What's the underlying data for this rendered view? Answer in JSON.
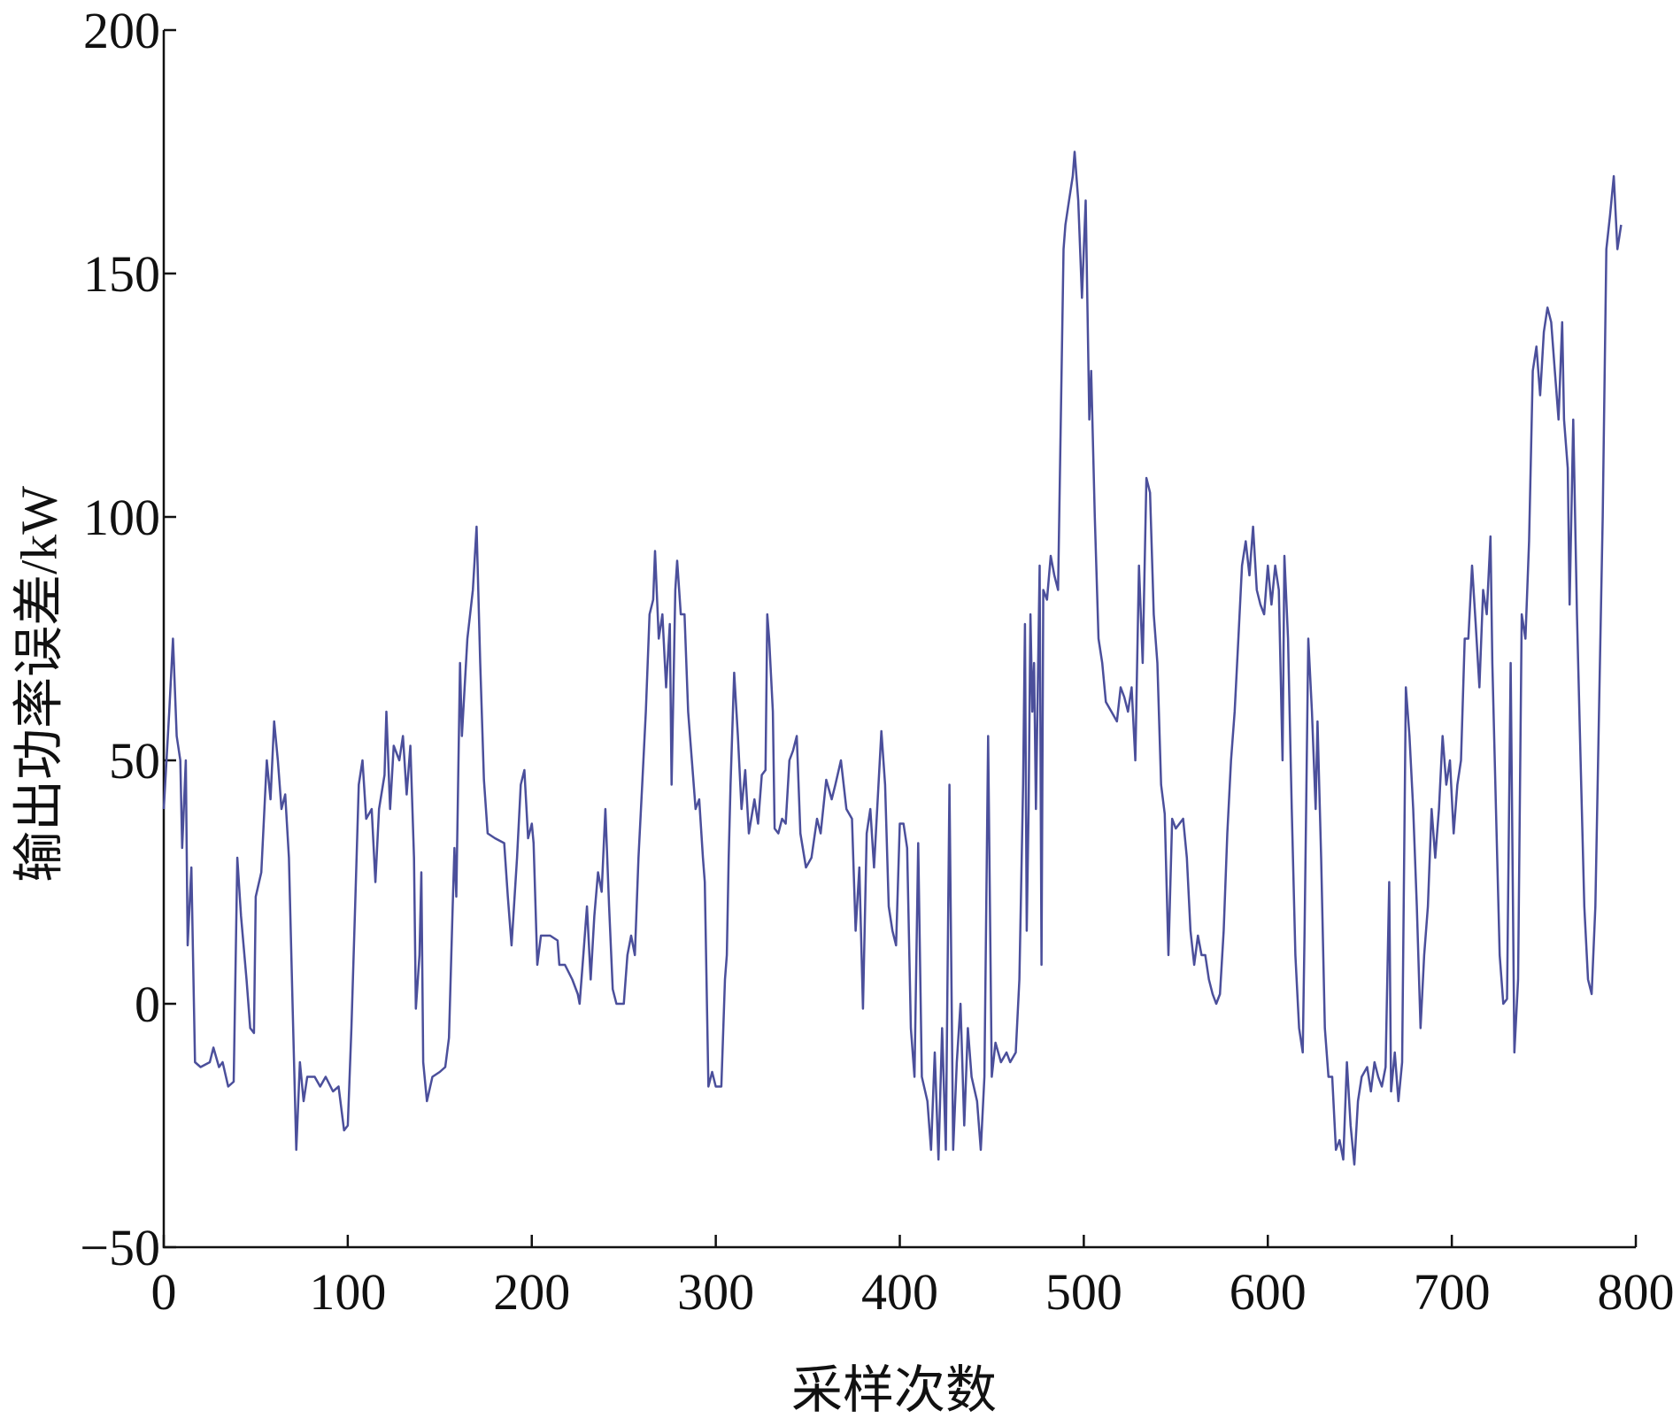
{
  "chart_data": {
    "type": "line",
    "x_label": "采样次数",
    "y_label": "输出功率误差/kW",
    "xlim": [
      0,
      800
    ],
    "ylim": [
      -50,
      200
    ],
    "xticks": [
      0,
      100,
      200,
      300,
      400,
      500,
      600,
      700,
      800
    ],
    "yticks": [
      {
        "value": -50,
        "label": "−50"
      },
      0,
      50,
      100,
      150,
      200
    ],
    "grid": false,
    "series": [
      {
        "color": "#4b4f9b",
        "x": [
          0,
          3,
          5,
          7,
          9,
          10,
          12,
          13,
          15,
          17,
          20,
          25,
          27,
          30,
          32,
          35,
          38,
          40,
          42,
          45,
          47,
          49,
          50,
          53,
          56,
          58,
          60,
          62,
          64,
          66,
          68,
          70,
          72,
          74,
          76,
          78,
          82,
          85,
          88,
          92,
          95,
          98,
          100,
          102,
          104,
          106,
          108,
          110,
          113,
          115,
          117,
          120,
          121,
          123,
          125,
          128,
          130,
          132,
          134,
          136,
          137,
          139,
          140,
          141,
          143,
          146,
          150,
          153,
          155,
          157,
          158,
          159,
          161,
          162,
          165,
          168,
          170,
          172,
          174,
          176,
          180,
          185,
          187,
          189,
          192,
          194,
          196,
          198,
          200,
          201,
          203,
          205,
          210,
          214,
          215,
          218,
          222,
          225,
          226,
          228,
          230,
          232,
          234,
          236,
          238,
          240,
          242,
          244,
          246,
          250,
          252,
          254,
          256,
          258,
          260,
          262,
          264,
          266,
          267,
          269,
          271,
          273,
          275,
          276,
          278,
          279,
          281,
          283,
          285,
          287,
          289,
          291,
          293,
          294,
          296,
          298,
          300,
          303,
          305,
          306,
          307,
          308,
          310,
          312,
          314,
          316,
          318,
          321,
          323,
          325,
          327,
          328,
          329,
          331,
          332,
          334,
          336,
          338,
          340,
          342,
          344,
          346,
          349,
          352,
          355,
          357,
          360,
          363,
          365,
          368,
          371,
          374,
          376,
          378,
          380,
          382,
          384,
          386,
          390,
          392,
          394,
          396,
          398,
          400,
          402,
          404,
          406,
          408,
          410,
          412,
          415,
          417,
          419,
          421,
          423,
          425,
          427,
          429,
          431,
          433,
          435,
          437,
          439,
          442,
          444,
          446,
          448,
          450,
          452,
          455,
          458,
          460,
          463,
          465,
          467,
          468,
          469,
          470,
          471,
          472,
          473,
          474,
          476,
          477,
          478,
          480,
          482,
          484,
          486,
          489,
          490,
          492,
          494,
          495,
          497,
          499,
          501,
          503,
          504,
          506,
          508,
          510,
          512,
          515,
          518,
          520,
          522,
          524,
          526,
          528,
          530,
          532,
          534,
          536,
          538,
          540,
          542,
          544,
          546,
          548,
          550,
          554,
          556,
          558,
          560,
          562,
          564,
          566,
          568,
          570,
          572,
          574,
          576,
          578,
          580,
          582,
          584,
          586,
          588,
          590,
          592,
          594,
          596,
          598,
          600,
          602,
          604,
          606,
          608,
          609,
          611,
          613,
          615,
          617,
          619,
          620,
          622,
          624,
          626,
          627,
          629,
          631,
          633,
          635,
          637,
          639,
          641,
          643,
          645,
          647,
          649,
          651,
          654,
          656,
          658,
          660,
          662,
          664,
          666,
          667,
          669,
          671,
          673,
          675,
          677,
          679,
          681,
          683,
          685,
          687,
          689,
          691,
          693,
          695,
          697,
          699,
          701,
          703,
          705,
          707,
          709,
          711,
          713,
          715,
          717,
          719,
          721,
          722,
          724,
          726,
          728,
          730,
          732,
          734,
          736,
          738,
          740,
          742,
          744,
          746,
          748,
          750,
          752,
          754,
          756,
          758,
          760,
          761,
          763,
          764,
          766,
          768,
          770,
          772,
          774,
          776,
          778,
          780,
          782,
          784,
          786,
          788,
          790,
          792
        ],
        "values": [
          40,
          60,
          75,
          55,
          50,
          32,
          50,
          12,
          28,
          -12,
          -13,
          -12,
          -9,
          -13,
          -12,
          -17,
          -16,
          30,
          18,
          5,
          -5,
          -6,
          22,
          27,
          50,
          42,
          58,
          50,
          40,
          43,
          30,
          0,
          -30,
          -12,
          -20,
          -15,
          -15,
          -17,
          -15,
          -18,
          -17,
          -26,
          -25,
          -5,
          20,
          45,
          50,
          38,
          40,
          25,
          40,
          47,
          60,
          40,
          53,
          50,
          55,
          43,
          53,
          30,
          -1,
          10,
          27,
          -12,
          -20,
          -15,
          -14,
          -13,
          -7,
          20,
          32,
          22,
          70,
          55,
          75,
          85,
          98,
          70,
          46,
          35,
          34,
          33,
          22,
          12,
          30,
          45,
          48,
          34,
          37,
          33,
          8,
          14,
          14,
          13,
          8,
          8,
          5,
          2,
          0,
          10,
          20,
          5,
          18,
          27,
          23,
          40,
          20,
          3,
          0,
          0,
          10,
          14,
          10,
          30,
          45,
          60,
          80,
          83,
          93,
          75,
          80,
          65,
          78,
          45,
          85,
          91,
          80,
          80,
          60,
          50,
          40,
          42,
          30,
          25,
          -17,
          -14,
          -17,
          -17,
          5,
          10,
          30,
          45,
          68,
          55,
          40,
          48,
          35,
          42,
          37,
          47,
          48,
          80,
          75,
          60,
          36,
          35,
          38,
          37,
          50,
          52,
          55,
          35,
          28,
          30,
          38,
          35,
          46,
          42,
          45,
          50,
          40,
          38,
          15,
          28,
          -1,
          35,
          40,
          28,
          56,
          45,
          20,
          15,
          12,
          37,
          37,
          32,
          -5,
          -15,
          33,
          -15,
          -20,
          -30,
          -10,
          -32,
          -5,
          -30,
          45,
          -30,
          -12,
          0,
          -25,
          -5,
          -15,
          -20,
          -30,
          -15,
          55,
          -15,
          -8,
          -12,
          -10,
          -12,
          -10,
          5,
          45,
          78,
          15,
          40,
          80,
          60,
          70,
          40,
          90,
          8,
          85,
          83,
          92,
          88,
          85,
          155,
          160,
          165,
          170,
          175,
          165,
          145,
          165,
          120,
          130,
          100,
          75,
          70,
          62,
          60,
          58,
          65,
          63,
          60,
          65,
          50,
          90,
          70,
          108,
          105,
          80,
          70,
          45,
          39,
          10,
          38,
          36,
          38,
          30,
          15,
          8,
          14,
          10,
          10,
          5,
          2,
          0,
          2,
          15,
          35,
          50,
          60,
          75,
          90,
          95,
          88,
          98,
          85,
          82,
          80,
          90,
          82,
          90,
          85,
          50,
          92,
          75,
          40,
          10,
          -5,
          -10,
          15,
          75,
          60,
          40,
          58,
          30,
          -5,
          -15,
          -15,
          -30,
          -28,
          -32,
          -12,
          -25,
          -33,
          -20,
          -15,
          -13,
          -18,
          -12,
          -15,
          -17,
          -13,
          25,
          -18,
          -10,
          -20,
          -12,
          65,
          55,
          40,
          20,
          -5,
          10,
          20,
          40,
          30,
          40,
          55,
          45,
          50,
          35,
          45,
          50,
          75,
          75,
          90,
          78,
          65,
          85,
          80,
          96,
          70,
          40,
          10,
          0,
          1,
          70,
          -10,
          5,
          80,
          75,
          95,
          130,
          135,
          125,
          138,
          143,
          140,
          130,
          120,
          140,
          120,
          110,
          82,
          120,
          80,
          50,
          20,
          5,
          2,
          20,
          60,
          100,
          155,
          162,
          170,
          155,
          160
        ]
      }
    ]
  }
}
